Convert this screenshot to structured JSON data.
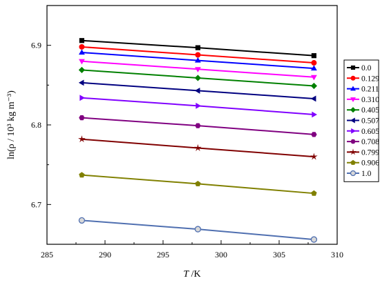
{
  "chart_data": {
    "type": "line",
    "xlabel_italic": "T",
    "xlabel_unit": " /K",
    "ylabel": "ln(ρ / 10³ kg m⁻³)",
    "x": [
      288,
      298,
      308
    ],
    "xlim": [
      285,
      310
    ],
    "ylim": [
      6.65,
      6.95
    ],
    "xticks": [
      "285",
      "290",
      "295",
      "300",
      "305",
      "310"
    ],
    "yticks": [
      "6.7",
      "6.8",
      "6.9"
    ],
    "legend_position": "right",
    "series": [
      {
        "name": "0.0",
        "color": "#000000",
        "marker": "square",
        "values": [
          6.906,
          6.897,
          6.887
        ]
      },
      {
        "name": "0.129",
        "color": "#ff0000",
        "marker": "circle",
        "values": [
          6.898,
          6.888,
          6.878
        ]
      },
      {
        "name": "0.211",
        "color": "#0000ff",
        "marker": "triangle-up",
        "values": [
          6.891,
          6.881,
          6.871
        ]
      },
      {
        "name": "0.310",
        "color": "#ff00ff",
        "marker": "triangle-down",
        "values": [
          6.88,
          6.87,
          6.86
        ]
      },
      {
        "name": "0.405",
        "color": "#008000",
        "marker": "diamond",
        "values": [
          6.869,
          6.859,
          6.849
        ]
      },
      {
        "name": "0.507",
        "color": "#000080",
        "marker": "triangle-left",
        "values": [
          6.853,
          6.843,
          6.833
        ]
      },
      {
        "name": "0.605",
        "color": "#8000ff",
        "marker": "triangle-right",
        "values": [
          6.834,
          6.824,
          6.813
        ]
      },
      {
        "name": "0.708",
        "color": "#800080",
        "marker": "hexagon",
        "values": [
          6.809,
          6.799,
          6.788
        ]
      },
      {
        "name": "0.799",
        "color": "#800000",
        "marker": "star",
        "values": [
          6.782,
          6.771,
          6.76
        ]
      },
      {
        "name": "0.906",
        "color": "#808000",
        "marker": "pentagon",
        "values": [
          6.737,
          6.726,
          6.714
        ]
      },
      {
        "name": "1.0",
        "color": "#4f6fb0",
        "marker": "circle-shaded",
        "values": [
          6.68,
          6.669,
          6.656
        ]
      }
    ]
  }
}
